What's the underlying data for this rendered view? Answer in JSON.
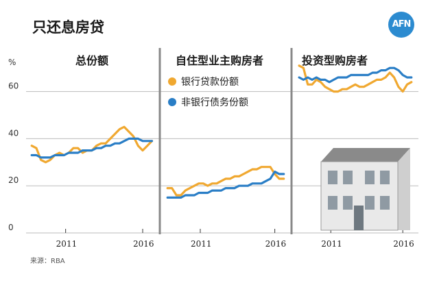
{
  "header": {
    "title": "只还息房贷",
    "logo_text": "AFN"
  },
  "source": "来源：RBA",
  "chart_data": {
    "type": "line",
    "y_unit_label": "%",
    "ylim": [
      0,
      75
    ],
    "y_ticks": [
      0,
      20,
      40,
      60
    ],
    "grid": true,
    "colors": {
      "bank": "#f0a830",
      "nonbank": "#2a7ec6",
      "grid": "#bbbbbb",
      "divider": "#888888"
    },
    "legend": {
      "placement": "panel-2-top",
      "entries": [
        {
          "key": "bank",
          "label": "银行贷款份额"
        },
        {
          "key": "nonbank",
          "label": "非银行债务份额"
        }
      ]
    },
    "panels": [
      {
        "title": "总份额",
        "x_ticks": [
          "2011",
          "2016"
        ],
        "xlim": [
          2008.7,
          2016.8
        ],
        "series": [
          {
            "key": "bank",
            "x": [
              2008.8,
              2009.1,
              2009.4,
              2009.7,
              2010.0,
              2010.3,
              2010.6,
              2010.9,
              2011.2,
              2011.5,
              2011.8,
              2012.1,
              2012.4,
              2012.7,
              2013.0,
              2013.3,
              2013.6,
              2013.9,
              2014.2,
              2014.5,
              2014.8,
              2015.1,
              2015.4,
              2015.7,
              2016.0,
              2016.3,
              2016.6
            ],
            "y": [
              37,
              36,
              31,
              30,
              31,
              33,
              34,
              33,
              34,
              36,
              36,
              34,
              35,
              35,
              37,
              38,
              38,
              40,
              42,
              44,
              45,
              43,
              41,
              37,
              35,
              37,
              39
            ]
          },
          {
            "key": "nonbank",
            "x": [
              2008.8,
              2009.1,
              2009.4,
              2009.7,
              2010.0,
              2010.3,
              2010.6,
              2010.9,
              2011.2,
              2011.5,
              2011.8,
              2012.1,
              2012.4,
              2012.7,
              2013.0,
              2013.3,
              2013.6,
              2013.9,
              2014.2,
              2014.5,
              2014.8,
              2015.1,
              2015.4,
              2015.7,
              2016.0,
              2016.3,
              2016.6
            ],
            "y": [
              33,
              33,
              32,
              32,
              32,
              33,
              33,
              33,
              34,
              34,
              34,
              35,
              35,
              35,
              36,
              36,
              37,
              37,
              38,
              38,
              39,
              40,
              40,
              40,
              39,
              39,
              39
            ]
          }
        ]
      },
      {
        "title": "自住型业主购房者",
        "x_ticks": [
          "2011",
          "2016"
        ],
        "xlim": [
          2008.7,
          2016.8
        ],
        "series": [
          {
            "key": "bank",
            "x": [
              2008.8,
              2009.1,
              2009.4,
              2009.7,
              2010.0,
              2010.3,
              2010.6,
              2010.9,
              2011.2,
              2011.5,
              2011.8,
              2012.1,
              2012.4,
              2012.7,
              2013.0,
              2013.3,
              2013.6,
              2013.9,
              2014.2,
              2014.5,
              2014.8,
              2015.1,
              2015.4,
              2015.7,
              2016.0,
              2016.3,
              2016.6
            ],
            "y": [
              19,
              19,
              16,
              16,
              18,
              19,
              20,
              21,
              21,
              20,
              21,
              21,
              22,
              23,
              23,
              24,
              24,
              25,
              26,
              27,
              27,
              28,
              28,
              28,
              25,
              23,
              23
            ]
          },
          {
            "key": "nonbank",
            "x": [
              2008.8,
              2009.1,
              2009.4,
              2009.7,
              2010.0,
              2010.3,
              2010.6,
              2010.9,
              2011.2,
              2011.5,
              2011.8,
              2012.1,
              2012.4,
              2012.7,
              2013.0,
              2013.3,
              2013.6,
              2013.9,
              2014.2,
              2014.5,
              2014.8,
              2015.1,
              2015.4,
              2015.7,
              2016.0,
              2016.3,
              2016.6
            ],
            "y": [
              15,
              15,
              15,
              15,
              16,
              16,
              16,
              17,
              17,
              17,
              18,
              18,
              18,
              19,
              19,
              19,
              20,
              20,
              20,
              21,
              21,
              21,
              22,
              23,
              26,
              25,
              25
            ]
          }
        ]
      },
      {
        "title": "投资型购房者",
        "x_ticks": [
          "2011",
          "2016"
        ],
        "xlim": [
          2008.7,
          2016.8
        ],
        "series": [
          {
            "key": "bank",
            "x": [
              2008.8,
              2009.1,
              2009.4,
              2009.7,
              2010.0,
              2010.3,
              2010.6,
              2010.9,
              2011.2,
              2011.5,
              2011.8,
              2012.1,
              2012.4,
              2012.7,
              2013.0,
              2013.3,
              2013.6,
              2013.9,
              2014.2,
              2014.5,
              2014.8,
              2015.1,
              2015.4,
              2015.7,
              2016.0,
              2016.3,
              2016.6
            ],
            "y": [
              71,
              70,
              63,
              63,
              65,
              64,
              62,
              61,
              60,
              60,
              61,
              61,
              62,
              63,
              62,
              62,
              63,
              64,
              65,
              65,
              66,
              68,
              66,
              62,
              60,
              63,
              64
            ]
          },
          {
            "key": "nonbank",
            "x": [
              2008.8,
              2009.1,
              2009.4,
              2009.7,
              2010.0,
              2010.3,
              2010.6,
              2010.9,
              2011.2,
              2011.5,
              2011.8,
              2012.1,
              2012.4,
              2012.7,
              2013.0,
              2013.3,
              2013.6,
              2013.9,
              2014.2,
              2014.5,
              2014.8,
              2015.1,
              2015.4,
              2015.7,
              2016.0,
              2016.3,
              2016.6
            ],
            "y": [
              66,
              65,
              66,
              65,
              66,
              65,
              65,
              64,
              65,
              66,
              66,
              66,
              67,
              67,
              67,
              67,
              67,
              68,
              68,
              69,
              69,
              70,
              70,
              69,
              67,
              66,
              66
            ]
          }
        ]
      }
    ]
  }
}
